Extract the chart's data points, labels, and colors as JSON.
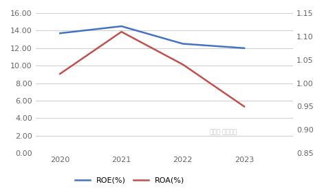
{
  "years": [
    2020,
    2021,
    2022,
    2023
  ],
  "roe": [
    13.7,
    14.5,
    12.5,
    12.0
  ],
  "roa": [
    1.02,
    1.11,
    1.04,
    0.95
  ],
  "roe_color": "#4472C4",
  "roa_color": "#C0504D",
  "left_ylim": [
    0,
    16
  ],
  "left_yticks": [
    0.0,
    2.0,
    4.0,
    6.0,
    8.0,
    10.0,
    12.0,
    14.0,
    16.0
  ],
  "right_ylim": [
    0.85,
    1.15
  ],
  "right_yticks": [
    0.85,
    0.9,
    0.95,
    1.0,
    1.05,
    1.1,
    1.15
  ],
  "legend_roe": "ROE(%)",
  "legend_roa": "ROA(%)",
  "line_width": 1.8,
  "bg_color": "#ffffff",
  "grid_color": "#d0d0d0",
  "tick_label_color": "#666666",
  "watermark": "公众号·机构之家"
}
